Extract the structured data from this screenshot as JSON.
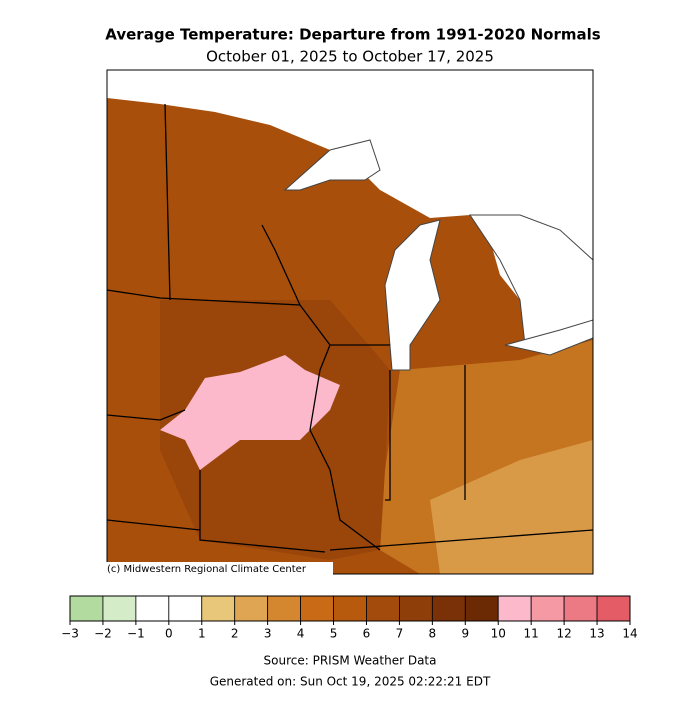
{
  "header": {
    "title": "Average Temperature: Departure from 1991-2020 Normals",
    "subtitle": "October 01, 2025 to October 17, 2025"
  },
  "map": {
    "credit": "(c) Midwestern Regional Climate Center"
  },
  "colorbar": {
    "ticks": [
      {
        "value": -3,
        "label": "−3"
      },
      {
        "value": -2,
        "label": "−2"
      },
      {
        "value": -1,
        "label": "−1"
      },
      0,
      1,
      2,
      3,
      4,
      5,
      6,
      7,
      8,
      9,
      10,
      11,
      12,
      13,
      14
    ],
    "colors": [
      "#b2dba0",
      "#d5ecc9",
      "#ffffff",
      "#ffffff",
      "#e8c77b",
      "#dfa552",
      "#d4872f",
      "#c96a16",
      "#b75a0e",
      "#a34b0c",
      "#8e3e09",
      "#7a3107",
      "#6b2a04",
      "#fdb9cc",
      "#f599a5",
      "#ec7a85",
      "#e45d66"
    ]
  },
  "footer": {
    "source": "Source: PRISM Weather Data",
    "generated": "Generated on: Sun Oct 19, 2025 02:22:21 EDT"
  }
}
